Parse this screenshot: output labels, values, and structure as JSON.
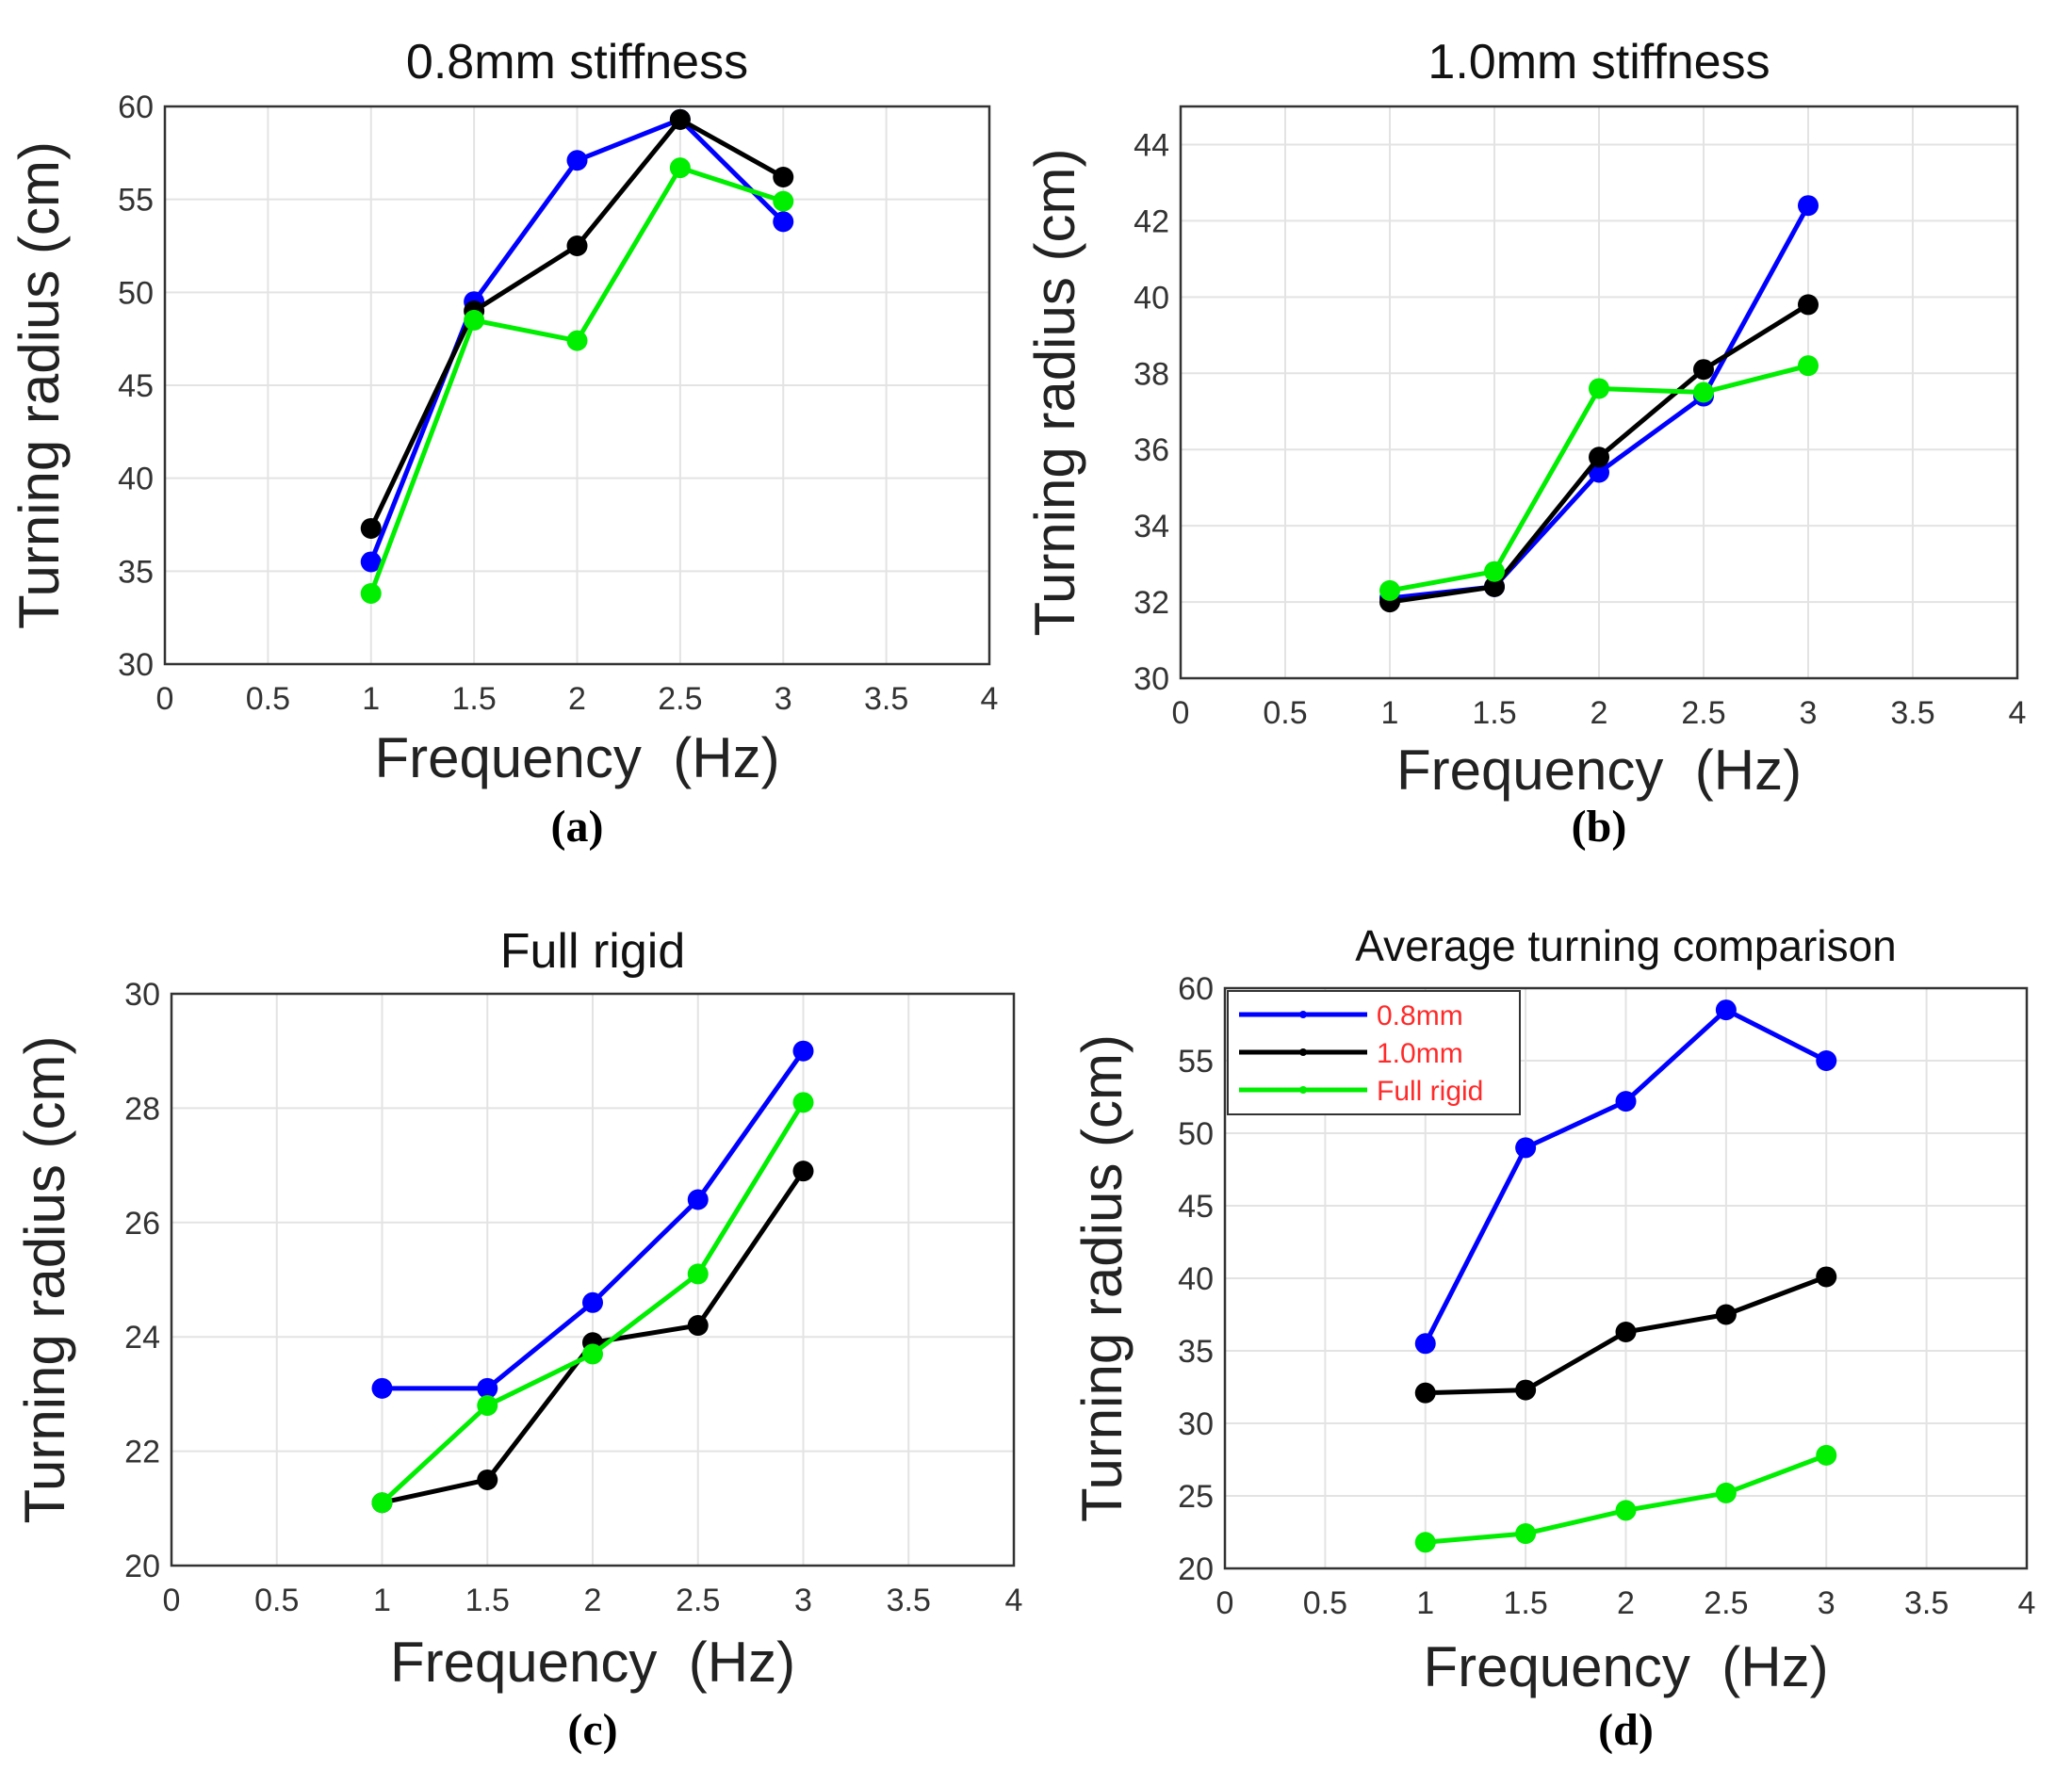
{
  "colors": {
    "series_0_8mm": "#0000ff",
    "series_1_0mm": "#000000",
    "series_full_rigid": "#00ee00",
    "legend_text": "#ff2a2a"
  },
  "chart_data": [
    {
      "id": "a",
      "type": "line",
      "title": "0.8mm stiffness",
      "caption": "(a)",
      "xlabel": "Frequency  (Hz)",
      "ylabel": "Turning radius (cm)",
      "xlim": [
        0,
        4
      ],
      "ylim": [
        30,
        60
      ],
      "xticks": [
        0,
        0.5,
        1,
        1.5,
        2,
        2.5,
        3,
        3.5,
        4
      ],
      "xtick_labels": [
        "0",
        "0.5",
        "1",
        "1.5",
        "2",
        "2.5",
        "3",
        "3.5",
        "4"
      ],
      "yticks": [
        30,
        35,
        40,
        45,
        50,
        55,
        60
      ],
      "ytick_labels": [
        "30",
        "35",
        "40",
        "45",
        "50",
        "55",
        "60"
      ],
      "grid": true,
      "x": [
        1,
        1.5,
        2,
        2.5,
        3
      ],
      "series": [
        {
          "name": "0.8mm",
          "color": "#0000ff",
          "values": [
            35.5,
            49.5,
            57.1,
            59.3,
            53.8
          ]
        },
        {
          "name": "1.0mm",
          "color": "#000000",
          "values": [
            37.3,
            49.0,
            52.5,
            59.3,
            56.2
          ]
        },
        {
          "name": "Full rigid",
          "color": "#00ee00",
          "values": [
            33.8,
            48.5,
            47.4,
            56.7,
            54.9
          ]
        }
      ]
    },
    {
      "id": "b",
      "type": "line",
      "title": "1.0mm stiffness",
      "caption": "(b)",
      "xlabel": "Frequency  (Hz)",
      "ylabel": "Turning radius (cm)",
      "xlim": [
        0,
        4
      ],
      "ylim": [
        30,
        45
      ],
      "xticks": [
        0,
        0.5,
        1,
        1.5,
        2,
        2.5,
        3,
        3.5,
        4
      ],
      "xtick_labels": [
        "0",
        "0.5",
        "1",
        "1.5",
        "2",
        "2.5",
        "3",
        "3.5",
        "4"
      ],
      "yticks": [
        30,
        32,
        34,
        36,
        38,
        40,
        42,
        44
      ],
      "ytick_labels": [
        "30",
        "32",
        "34",
        "36",
        "38",
        "40",
        "42",
        "44"
      ],
      "grid": true,
      "x": [
        1,
        1.5,
        2,
        2.5,
        3
      ],
      "series": [
        {
          "name": "0.8mm",
          "color": "#0000ff",
          "values": [
            32.1,
            32.4,
            35.4,
            37.4,
            42.4
          ]
        },
        {
          "name": "1.0mm",
          "color": "#000000",
          "values": [
            32.0,
            32.4,
            35.8,
            38.1,
            39.8
          ]
        },
        {
          "name": "Full rigid",
          "color": "#00ee00",
          "values": [
            32.3,
            32.8,
            37.6,
            37.5,
            38.2
          ]
        }
      ]
    },
    {
      "id": "c",
      "type": "line",
      "title": "Full rigid",
      "caption": "(c)",
      "xlabel": "Frequency  (Hz)",
      "ylabel": "Turning radius (cm)",
      "xlim": [
        0,
        4
      ],
      "ylim": [
        20,
        30
      ],
      "xticks": [
        0,
        0.5,
        1,
        1.5,
        2,
        2.5,
        3,
        3.5,
        4
      ],
      "xtick_labels": [
        "0",
        "0.5",
        "1",
        "1.5",
        "2",
        "2.5",
        "3",
        "3.5",
        "4"
      ],
      "yticks": [
        20,
        22,
        24,
        26,
        28,
        30
      ],
      "ytick_labels": [
        "20",
        "22",
        "24",
        "26",
        "28",
        "30"
      ],
      "grid": true,
      "x": [
        1,
        1.5,
        2,
        2.5,
        3
      ],
      "series": [
        {
          "name": "0.8mm",
          "color": "#0000ff",
          "values": [
            23.1,
            23.1,
            24.6,
            26.4,
            29.0
          ]
        },
        {
          "name": "1.0mm",
          "color": "#000000",
          "values": [
            21.1,
            21.5,
            23.9,
            24.2,
            26.9
          ]
        },
        {
          "name": "Full rigid",
          "color": "#00ee00",
          "values": [
            21.1,
            22.8,
            23.7,
            25.1,
            28.1
          ]
        }
      ]
    },
    {
      "id": "d",
      "type": "line",
      "title": "Average turning comparison",
      "caption": "(d)",
      "xlabel": "Frequency  (Hz)",
      "ylabel": "Turning radius (cm)",
      "xlim": [
        0,
        4
      ],
      "ylim": [
        20,
        60
      ],
      "xticks": [
        0,
        0.5,
        1,
        1.5,
        2,
        2.5,
        3,
        3.5,
        4
      ],
      "xtick_labels": [
        "0",
        "0.5",
        "1",
        "1.5",
        "2",
        "2.5",
        "3",
        "3.5",
        "4"
      ],
      "yticks": [
        20,
        25,
        30,
        35,
        40,
        45,
        50,
        55,
        60
      ],
      "ytick_labels": [
        "20",
        "25",
        "30",
        "35",
        "40",
        "45",
        "50",
        "55",
        "60"
      ],
      "grid": true,
      "legend": {
        "placement": "top-left",
        "entries": [
          "0.8mm",
          "1.0mm",
          "Full rigid"
        ]
      },
      "x": [
        1,
        1.5,
        2,
        2.5,
        3
      ],
      "series": [
        {
          "name": "0.8mm",
          "color": "#0000ff",
          "values": [
            35.5,
            49.0,
            52.2,
            58.5,
            55.0
          ]
        },
        {
          "name": "1.0mm",
          "color": "#000000",
          "values": [
            32.1,
            32.3,
            36.3,
            37.5,
            40.1
          ]
        },
        {
          "name": "Full rigid",
          "color": "#00ee00",
          "values": [
            21.8,
            22.4,
            24.0,
            25.2,
            27.8
          ]
        }
      ]
    }
  ]
}
